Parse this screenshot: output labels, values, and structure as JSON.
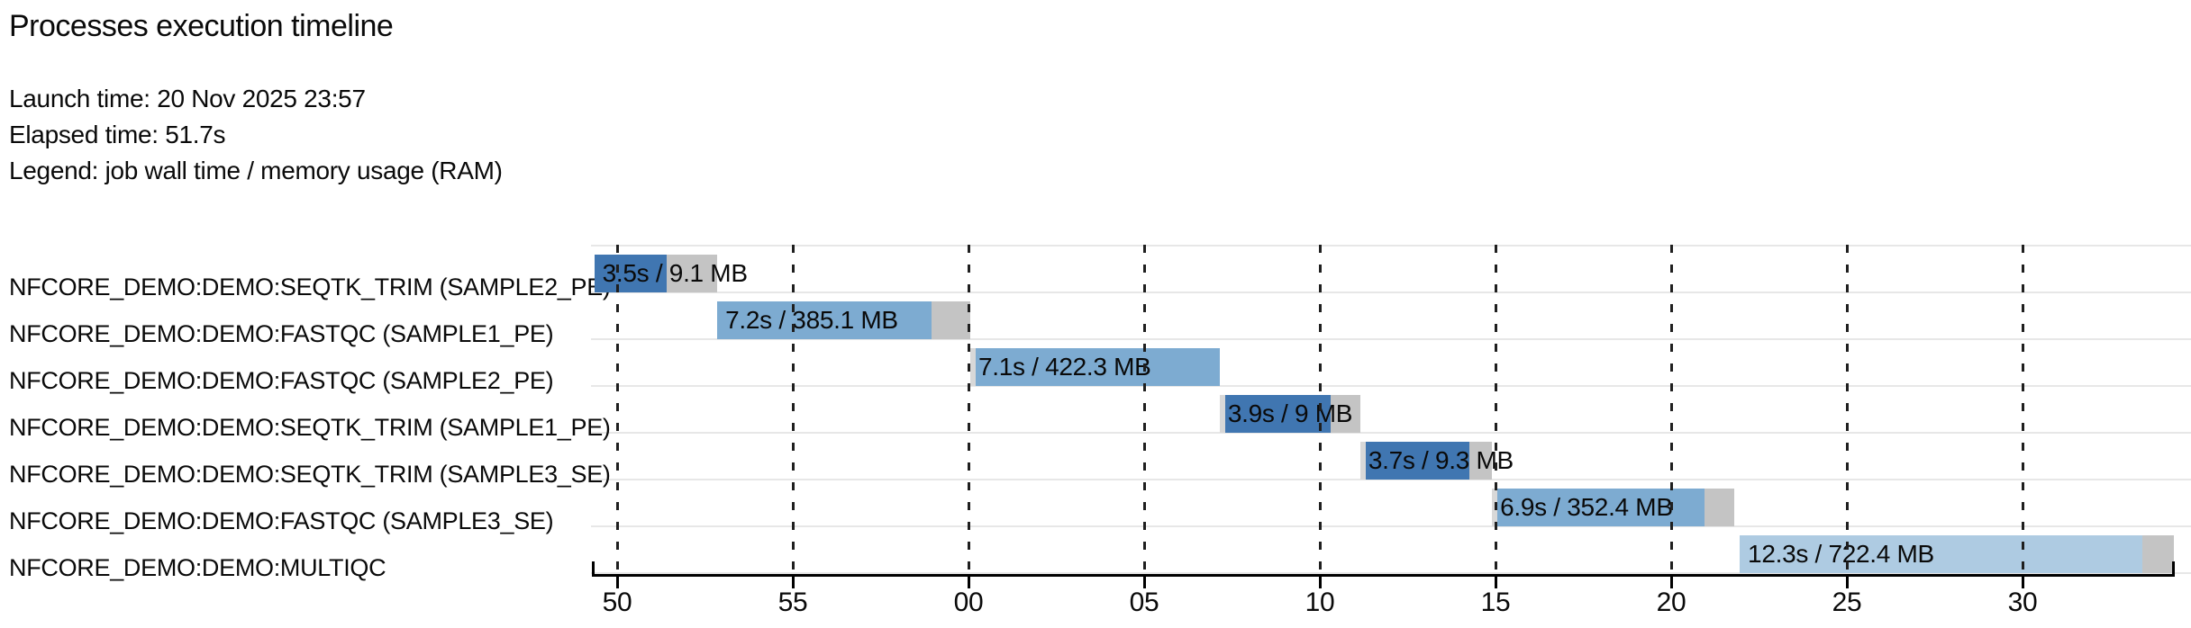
{
  "header": {
    "title": "Processes execution timeline",
    "launch_time": "Launch time: 20 Nov 2025 23:57",
    "elapsed_time": "Elapsed time: 51.7s",
    "legend": "Legend: job wall time / memory usage (RAM)"
  },
  "colors": {
    "run_dark": "#4076b1",
    "run_medium": "#7dabd1",
    "run_pale": "#aecbe2",
    "tail_gray": "#c4c4c4",
    "lead_gray": "#d8d8d8",
    "grid": "#1f1f1f",
    "separator": "#e7e7e7",
    "axis": "#000000"
  },
  "chart_data": {
    "type": "gantt",
    "title": "Processes execution timeline",
    "x_axis": {
      "unit": "seconds of clock time around 23:57/23:58",
      "domain_s": [
        49.3,
        94.3
      ],
      "ticks": [
        {
          "t": 50,
          "label": "50"
        },
        {
          "t": 55,
          "label": "55"
        },
        {
          "t": 60,
          "label": "00"
        },
        {
          "t": 65,
          "label": "05"
        },
        {
          "t": 70,
          "label": "10"
        },
        {
          "t": 75,
          "label": "15"
        },
        {
          "t": 80,
          "label": "20"
        },
        {
          "t": 85,
          "label": "25"
        },
        {
          "t": 90,
          "label": "30"
        }
      ],
      "grid": true
    },
    "legend_note": "bar label = job wall time / memory usage (RAM); colored segment = run, gray = overhead",
    "rows": [
      {
        "process": "NFCORE_DEMO:DEMO:SEQTK_TRIM (SAMPLE2_PE)",
        "bar_label": "3.5s / 9.1 MB",
        "wall_time": "3.5s",
        "memory": "9.1 MB",
        "shade": "dark",
        "segments": [
          {
            "kind": "run",
            "from": 49.35,
            "to": 51.4
          },
          {
            "kind": "tail",
            "from": 51.4,
            "to": 52.85
          }
        ]
      },
      {
        "process": "NFCORE_DEMO:DEMO:FASTQC (SAMPLE1_PE)",
        "bar_label": "7.2s / 385.1 MB",
        "wall_time": "7.2s",
        "memory": "385.1 MB",
        "shade": "medium",
        "segments": [
          {
            "kind": "run",
            "from": 52.85,
            "to": 58.95
          },
          {
            "kind": "tail",
            "from": 58.95,
            "to": 60.05
          }
        ]
      },
      {
        "process": "NFCORE_DEMO:DEMO:FASTQC (SAMPLE2_PE)",
        "bar_label": "7.1s / 422.3 MB",
        "wall_time": "7.1s",
        "memory": "422.3 MB",
        "shade": "medium",
        "segments": [
          {
            "kind": "lead",
            "from": 60.05,
            "to": 60.2
          },
          {
            "kind": "run",
            "from": 60.2,
            "to": 67.15
          }
        ]
      },
      {
        "process": "NFCORE_DEMO:DEMO:SEQTK_TRIM (SAMPLE1_PE)",
        "bar_label": "3.9s / 9 MB",
        "wall_time": "3.9s",
        "memory": "9 MB",
        "shade": "dark",
        "segments": [
          {
            "kind": "lead",
            "from": 67.15,
            "to": 67.3
          },
          {
            "kind": "run",
            "from": 67.3,
            "to": 70.3
          },
          {
            "kind": "tail",
            "from": 70.3,
            "to": 71.15
          }
        ]
      },
      {
        "process": "NFCORE_DEMO:DEMO:SEQTK_TRIM (SAMPLE3_SE)",
        "bar_label": "3.7s / 9.3 MB",
        "wall_time": "3.7s",
        "memory": "9.3 MB",
        "shade": "dark",
        "segments": [
          {
            "kind": "lead",
            "from": 71.15,
            "to": 71.3
          },
          {
            "kind": "run",
            "from": 71.3,
            "to": 74.25
          },
          {
            "kind": "tail",
            "from": 74.25,
            "to": 74.9
          }
        ]
      },
      {
        "process": "NFCORE_DEMO:DEMO:FASTQC (SAMPLE3_SE)",
        "bar_label": "6.9s / 352.4 MB",
        "wall_time": "6.9s",
        "memory": "352.4 MB",
        "shade": "medium",
        "segments": [
          {
            "kind": "lead",
            "from": 74.9,
            "to": 75.05
          },
          {
            "kind": "run",
            "from": 75.05,
            "to": 80.95
          },
          {
            "kind": "tail",
            "from": 80.95,
            "to": 81.8
          }
        ]
      },
      {
        "process": "NFCORE_DEMO:DEMO:MULTIQC",
        "bar_label": "12.3s / 722.4 MB",
        "wall_time": "12.3s",
        "memory": "722.4 MB",
        "shade": "pale",
        "segments": [
          {
            "kind": "run",
            "from": 81.95,
            "to": 93.4
          },
          {
            "kind": "tail",
            "from": 93.4,
            "to": 94.3
          }
        ]
      }
    ]
  }
}
